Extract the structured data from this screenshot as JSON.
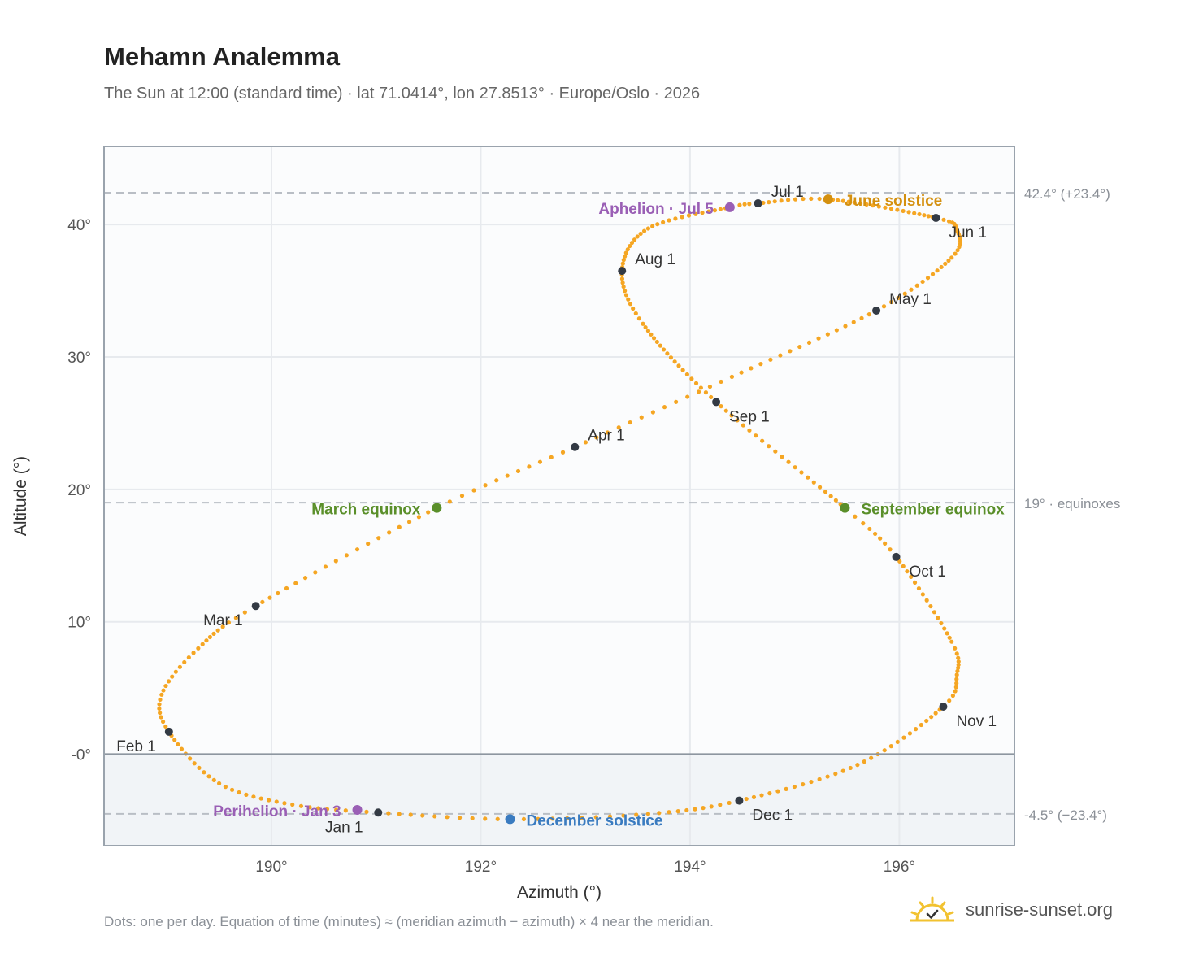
{
  "header": {
    "title": "Mehamn Analemma",
    "subtitle": "The Sun at 12:00 (standard time) · lat 71.0414°, lon 27.8513° · Europe/Oslo · 2026"
  },
  "footer": {
    "note": "Dots: one per day. Equation of time (minutes) ≈ (meridian azimuth − azimuth) × 4 near the meridian.",
    "brand": "sunrise-sunset.org"
  },
  "colors": {
    "path": "#f5a623",
    "month_marker": "#333a44",
    "aphelion": "#9a5fb5",
    "solstice_june": "#d4900f",
    "equinox": "#5a8f2a",
    "solstice_december": "#3a7bc0",
    "below_horizon": "#f1f4f7",
    "reference_line": "#b9bec5",
    "grid": "#e7eaee",
    "axis_frame": "#9aa3ad"
  },
  "chart_data": {
    "type": "scatter",
    "xlabel": "Azimuth (°)",
    "ylabel": "Altitude (°)",
    "xlim": [
      188.4,
      197.1
    ],
    "ylim": [
      -6.9,
      45.9
    ],
    "x_ticks": [
      {
        "value": 190,
        "label": "190°"
      },
      {
        "value": 192,
        "label": "192°"
      },
      {
        "value": 194,
        "label": "194°"
      },
      {
        "value": 196,
        "label": "196°"
      }
    ],
    "y_ticks": [
      {
        "value": 0,
        "label": "-0°"
      },
      {
        "value": 10,
        "label": "10°"
      },
      {
        "value": 20,
        "label": "20°"
      },
      {
        "value": 30,
        "label": "30°"
      },
      {
        "value": 40,
        "label": "40°"
      }
    ],
    "grid": true,
    "horizon_altitude": 0,
    "reference_lines": [
      {
        "y": 42.4,
        "label": "42.4° (+23.4°)"
      },
      {
        "y": 19,
        "label": "19° · equinoxes"
      },
      {
        "y": -4.5,
        "label": "-4.5° (−23.4°)"
      }
    ],
    "path_control_points": [
      {
        "doy": 1,
        "az": 191.02,
        "alt": -4.4
      },
      {
        "doy": 10,
        "az": 190.2,
        "alt": -3.8
      },
      {
        "doy": 20,
        "az": 189.5,
        "alt": -2.2
      },
      {
        "doy": 32,
        "az": 189.02,
        "alt": 1.7
      },
      {
        "doy": 40,
        "az": 188.95,
        "alt": 4.5
      },
      {
        "doy": 50,
        "az": 189.3,
        "alt": 8.0
      },
      {
        "doy": 60,
        "az": 189.85,
        "alt": 11.2
      },
      {
        "doy": 79,
        "az": 191.58,
        "alt": 18.6
      },
      {
        "doy": 91,
        "az": 192.9,
        "alt": 23.2
      },
      {
        "doy": 105,
        "az": 194.4,
        "alt": 28.5
      },
      {
        "doy": 121,
        "az": 195.78,
        "alt": 33.5
      },
      {
        "doy": 135,
        "az": 196.5,
        "alt": 37.5
      },
      {
        "doy": 145,
        "az": 196.55,
        "alt": 39.6
      },
      {
        "doy": 152,
        "az": 196.35,
        "alt": 40.5
      },
      {
        "doy": 172,
        "az": 195.32,
        "alt": 41.9
      },
      {
        "doy": 182,
        "az": 194.65,
        "alt": 41.6
      },
      {
        "doy": 186,
        "az": 194.38,
        "alt": 41.3
      },
      {
        "doy": 200,
        "az": 193.6,
        "alt": 39.7
      },
      {
        "doy": 213,
        "az": 193.35,
        "alt": 36.5
      },
      {
        "doy": 225,
        "az": 193.55,
        "alt": 32.5
      },
      {
        "doy": 244,
        "az": 194.25,
        "alt": 26.6
      },
      {
        "doy": 266,
        "az": 195.48,
        "alt": 18.6
      },
      {
        "doy": 274,
        "az": 195.97,
        "alt": 14.9
      },
      {
        "doy": 290,
        "az": 196.5,
        "alt": 8.5
      },
      {
        "doy": 298,
        "az": 196.55,
        "alt": 6.0
      },
      {
        "doy": 305,
        "az": 196.42,
        "alt": 3.6
      },
      {
        "doy": 320,
        "az": 195.6,
        "alt": -0.8
      },
      {
        "doy": 335,
        "az": 194.47,
        "alt": -3.5
      },
      {
        "doy": 345,
        "az": 193.6,
        "alt": -4.5
      },
      {
        "doy": 355,
        "az": 192.28,
        "alt": -4.9
      },
      {
        "doy": 366,
        "az": 191.02,
        "alt": -4.4
      }
    ],
    "month_markers": [
      {
        "label": "Jan 1",
        "az": 191.02,
        "alt": -4.4,
        "anchor": "below"
      },
      {
        "label": "Feb 1",
        "az": 189.02,
        "alt": 1.7,
        "anchor": "left-below"
      },
      {
        "label": "Mar 1",
        "az": 189.85,
        "alt": 11.2,
        "anchor": "left-below"
      },
      {
        "label": "Apr 1",
        "az": 192.9,
        "alt": 23.2,
        "anchor": "right-above"
      },
      {
        "label": "May 1",
        "az": 195.78,
        "alt": 33.5,
        "anchor": "right-above"
      },
      {
        "label": "Jun 1",
        "az": 196.35,
        "alt": 40.5,
        "anchor": "right-below"
      },
      {
        "label": "Jul 1",
        "az": 194.65,
        "alt": 41.6,
        "anchor": "right-above"
      },
      {
        "label": "Aug 1",
        "az": 193.35,
        "alt": 36.5,
        "anchor": "right-above"
      },
      {
        "label": "Sep 1",
        "az": 194.25,
        "alt": 26.6,
        "anchor": "right-below"
      },
      {
        "label": "Oct 1",
        "az": 195.97,
        "alt": 14.9,
        "anchor": "right-below"
      },
      {
        "label": "Nov 1",
        "az": 196.42,
        "alt": 3.6,
        "anchor": "right-below"
      },
      {
        "label": "Dec 1",
        "az": 194.47,
        "alt": -3.5,
        "anchor": "right-below"
      }
    ],
    "events": [
      {
        "label": "Perihelion · Jan 3",
        "az": 190.82,
        "alt": -4.2,
        "color_key": "aphelion",
        "anchor": "left"
      },
      {
        "label": "March equinox",
        "az": 191.58,
        "alt": 18.6,
        "color_key": "equinox",
        "anchor": "left"
      },
      {
        "label": "June solstice",
        "az": 195.32,
        "alt": 41.9,
        "color_key": "solstice_june",
        "anchor": "right"
      },
      {
        "label": "Aphelion · Jul 5",
        "az": 194.38,
        "alt": 41.3,
        "color_key": "aphelion",
        "anchor": "left"
      },
      {
        "label": "September equinox",
        "az": 195.48,
        "alt": 18.6,
        "color_key": "equinox",
        "anchor": "right"
      },
      {
        "label": "December solstice",
        "az": 192.28,
        "alt": -4.9,
        "color_key": "solstice_december",
        "anchor": "right"
      }
    ]
  }
}
